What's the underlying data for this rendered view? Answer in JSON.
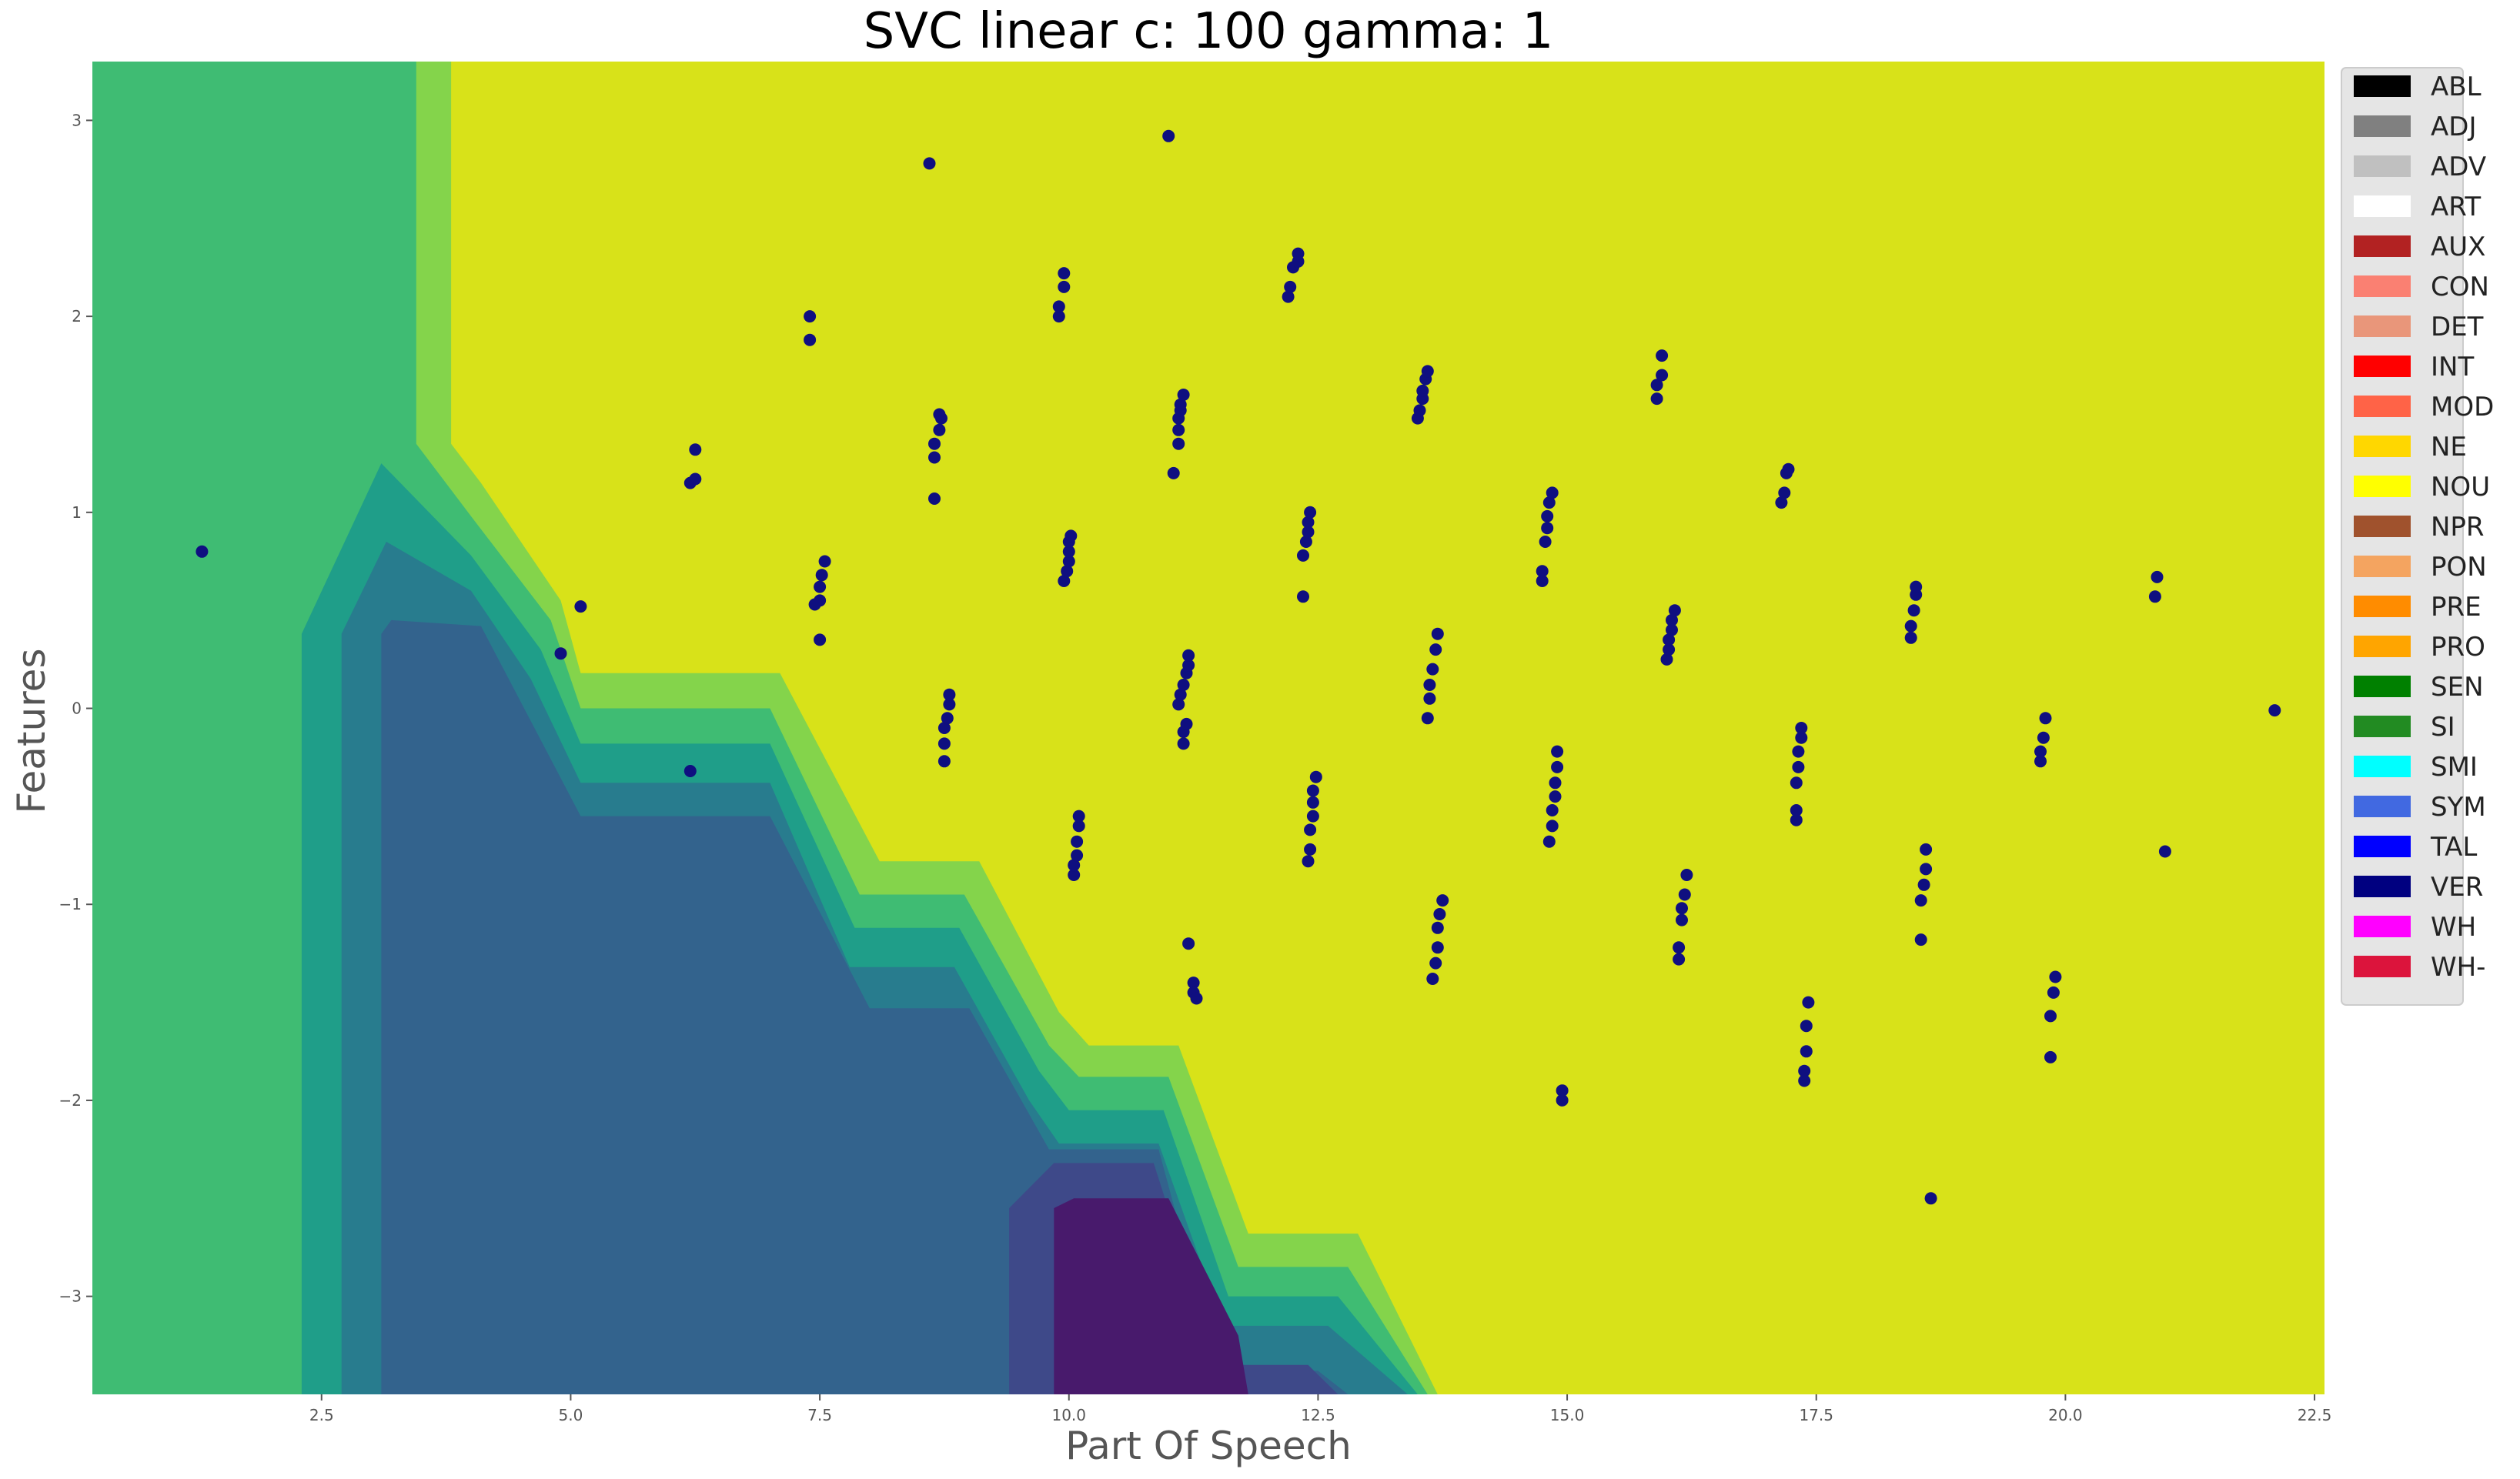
{
  "chart_data": {
    "type": "scatter",
    "title": "SVC linear c: 100 gamma: 1",
    "xlabel": "Part Of Speech",
    "ylabel": "Features",
    "xlim": [
      0.2,
      22.6
    ],
    "ylim": [
      -3.5,
      3.3
    ],
    "xticks": [
      2.5,
      5.0,
      7.5,
      10.0,
      12.5,
      15.0,
      17.5,
      20.0,
      22.5
    ],
    "xtick_labels": [
      "2.5",
      "5.0",
      "7.5",
      "10.0",
      "12.5",
      "15.0",
      "17.5",
      "20.0",
      "22.5"
    ],
    "yticks": [
      -3,
      -2,
      -1,
      0,
      1,
      2,
      3
    ],
    "ytick_labels": [
      "−3",
      "−2",
      "−1",
      "0",
      "1",
      "2",
      "3"
    ],
    "grid": false,
    "legend_position": "top-right outside",
    "point_color": "#0f0f80",
    "decision_regions": [
      {
        "color": "#d8e219",
        "polygon": [
          [
            0.2,
            3.3
          ],
          [
            22.6,
            3.3
          ],
          [
            22.6,
            -3.5
          ],
          [
            0.2,
            -3.5
          ]
        ]
      },
      {
        "color": "#84d44b",
        "polygon": [
          [
            0.2,
            3.3
          ],
          [
            3.8,
            3.3
          ],
          [
            3.8,
            1.35
          ],
          [
            4.1,
            1.15
          ],
          [
            4.9,
            0.55
          ],
          [
            5.1,
            0.18
          ],
          [
            7.1,
            0.18
          ],
          [
            8.1,
            -0.78
          ],
          [
            9.1,
            -0.78
          ],
          [
            9.9,
            -1.55
          ],
          [
            10.2,
            -1.72
          ],
          [
            11.1,
            -1.72
          ],
          [
            11.8,
            -2.68
          ],
          [
            12.9,
            -2.68
          ],
          [
            13.7,
            -3.5
          ],
          [
            0.2,
            -3.5
          ]
        ]
      },
      {
        "color": "#3fbc73",
        "polygon": [
          [
            0.2,
            3.3
          ],
          [
            3.45,
            3.3
          ],
          [
            3.45,
            1.35
          ],
          [
            4.0,
            0.98
          ],
          [
            4.8,
            0.45
          ],
          [
            5.1,
            0.0
          ],
          [
            7.0,
            0.0
          ],
          [
            7.9,
            -0.95
          ],
          [
            8.95,
            -0.95
          ],
          [
            9.8,
            -1.72
          ],
          [
            10.1,
            -1.88
          ],
          [
            11.0,
            -1.88
          ],
          [
            11.7,
            -2.85
          ],
          [
            12.8,
            -2.85
          ],
          [
            13.6,
            -3.5
          ],
          [
            0.2,
            -3.5
          ]
        ]
      },
      {
        "color": "#1f9e89",
        "polygon": [
          [
            2.3,
            -3.5
          ],
          [
            2.3,
            0.38
          ],
          [
            3.1,
            1.25
          ],
          [
            4.0,
            0.78
          ],
          [
            4.7,
            0.3
          ],
          [
            5.1,
            -0.18
          ],
          [
            7.0,
            -0.18
          ],
          [
            7.85,
            -1.12
          ],
          [
            8.9,
            -1.12
          ],
          [
            9.7,
            -1.85
          ],
          [
            10.0,
            -2.05
          ],
          [
            10.95,
            -2.05
          ],
          [
            11.6,
            -3.0
          ],
          [
            12.7,
            -3.0
          ],
          [
            13.5,
            -3.5
          ]
        ]
      },
      {
        "color": "#287c8e",
        "polygon": [
          [
            2.7,
            -3.5
          ],
          [
            2.7,
            0.38
          ],
          [
            3.15,
            0.85
          ],
          [
            4.0,
            0.6
          ],
          [
            4.6,
            0.15
          ],
          [
            5.1,
            -0.38
          ],
          [
            7.0,
            -0.38
          ],
          [
            7.8,
            -1.32
          ],
          [
            8.85,
            -1.32
          ],
          [
            9.6,
            -2.0
          ],
          [
            9.9,
            -2.22
          ],
          [
            10.9,
            -2.22
          ],
          [
            11.55,
            -3.15
          ],
          [
            12.6,
            -3.15
          ],
          [
            13.4,
            -3.5
          ]
        ]
      },
      {
        "color": "#33638d",
        "polygon": [
          [
            3.1,
            -3.5
          ],
          [
            3.1,
            0.38
          ],
          [
            3.2,
            0.45
          ],
          [
            4.1,
            0.42
          ],
          [
            5.1,
            -0.55
          ],
          [
            7.0,
            -0.55
          ],
          [
            8.0,
            -1.53
          ],
          [
            9.0,
            -1.53
          ],
          [
            9.8,
            -2.25
          ],
          [
            10.9,
            -2.25
          ],
          [
            11.5,
            -3.38
          ],
          [
            12.5,
            -3.38
          ],
          [
            12.8,
            -3.5
          ]
        ]
      },
      {
        "color": "#3e4989",
        "polygon": [
          [
            9.4,
            -3.5
          ],
          [
            9.4,
            -2.55
          ],
          [
            9.85,
            -2.32
          ],
          [
            10.85,
            -2.32
          ],
          [
            11.5,
            -3.35
          ],
          [
            12.4,
            -3.35
          ],
          [
            12.7,
            -3.5
          ]
        ]
      },
      {
        "color": "#481a6c",
        "polygon": [
          [
            9.85,
            -3.5
          ],
          [
            9.85,
            -2.55
          ],
          [
            10.05,
            -2.5
          ],
          [
            11.0,
            -2.5
          ],
          [
            11.7,
            -3.2
          ],
          [
            11.8,
            -3.5
          ]
        ]
      }
    ],
    "points": [
      [
        1.3,
        0.8
      ],
      [
        4.9,
        0.28
      ],
      [
        5.1,
        0.52
      ],
      [
        6.2,
        -0.32
      ],
      [
        6.2,
        1.15
      ],
      [
        6.25,
        1.17
      ],
      [
        6.25,
        1.32
      ],
      [
        7.4,
        1.88
      ],
      [
        7.4,
        2.0
      ],
      [
        7.5,
        0.35
      ],
      [
        7.5,
        0.55
      ],
      [
        7.5,
        0.62
      ],
      [
        7.52,
        0.68
      ],
      [
        7.55,
        0.75
      ],
      [
        7.45,
        0.53
      ],
      [
        8.6,
        2.78
      ],
      [
        8.65,
        1.07
      ],
      [
        8.65,
        1.28
      ],
      [
        8.65,
        1.35
      ],
      [
        8.7,
        1.42
      ],
      [
        8.72,
        1.48
      ],
      [
        8.7,
        1.5
      ],
      [
        8.75,
        -0.27
      ],
      [
        8.75,
        -0.18
      ],
      [
        8.75,
        -0.1
      ],
      [
        8.78,
        -0.05
      ],
      [
        8.8,
        0.02
      ],
      [
        8.8,
        0.07
      ],
      [
        9.9,
        2.0
      ],
      [
        9.9,
        2.05
      ],
      [
        9.95,
        2.15
      ],
      [
        9.95,
        2.22
      ],
      [
        9.95,
        0.65
      ],
      [
        9.98,
        0.7
      ],
      [
        10.0,
        0.75
      ],
      [
        10.0,
        0.8
      ],
      [
        10.0,
        0.85
      ],
      [
        10.02,
        0.88
      ],
      [
        10.05,
        -0.85
      ],
      [
        10.05,
        -0.8
      ],
      [
        10.08,
        -0.75
      ],
      [
        10.08,
        -0.68
      ],
      [
        10.1,
        -0.6
      ],
      [
        10.1,
        -0.55
      ],
      [
        11.0,
        2.92
      ],
      [
        11.05,
        1.2
      ],
      [
        11.1,
        1.35
      ],
      [
        11.1,
        1.42
      ],
      [
        11.1,
        1.48
      ],
      [
        11.12,
        1.52
      ],
      [
        11.12,
        1.55
      ],
      [
        11.15,
        1.6
      ],
      [
        11.1,
        0.02
      ],
      [
        11.12,
        0.07
      ],
      [
        11.15,
        0.12
      ],
      [
        11.18,
        0.18
      ],
      [
        11.2,
        0.22
      ],
      [
        11.2,
        0.27
      ],
      [
        11.15,
        -0.18
      ],
      [
        11.15,
        -0.12
      ],
      [
        11.18,
        -0.08
      ],
      [
        11.2,
        -1.2
      ],
      [
        11.25,
        -1.4
      ],
      [
        11.25,
        -1.45
      ],
      [
        11.28,
        -1.48
      ],
      [
        12.2,
        2.1
      ],
      [
        12.22,
        2.15
      ],
      [
        12.25,
        2.25
      ],
      [
        12.3,
        2.28
      ],
      [
        12.3,
        2.32
      ],
      [
        12.35,
        0.57
      ],
      [
        12.35,
        0.78
      ],
      [
        12.38,
        0.85
      ],
      [
        12.4,
        0.9
      ],
      [
        12.4,
        0.95
      ],
      [
        12.42,
        1.0
      ],
      [
        12.4,
        -0.78
      ],
      [
        12.42,
        -0.72
      ],
      [
        12.42,
        -0.62
      ],
      [
        12.45,
        -0.55
      ],
      [
        12.45,
        -0.48
      ],
      [
        12.45,
        -0.42
      ],
      [
        12.48,
        -0.35
      ],
      [
        13.5,
        1.48
      ],
      [
        13.52,
        1.52
      ],
      [
        13.55,
        1.58
      ],
      [
        13.55,
        1.62
      ],
      [
        13.58,
        1.68
      ],
      [
        13.6,
        1.72
      ],
      [
        13.6,
        -0.05
      ],
      [
        13.62,
        0.05
      ],
      [
        13.62,
        0.12
      ],
      [
        13.65,
        0.2
      ],
      [
        13.68,
        0.3
      ],
      [
        13.7,
        0.38
      ],
      [
        13.65,
        -1.38
      ],
      [
        13.68,
        -1.3
      ],
      [
        13.7,
        -1.22
      ],
      [
        13.7,
        -1.12
      ],
      [
        13.72,
        -1.05
      ],
      [
        13.75,
        -0.98
      ],
      [
        14.75,
        0.65
      ],
      [
        14.75,
        0.7
      ],
      [
        14.78,
        0.85
      ],
      [
        14.8,
        0.92
      ],
      [
        14.8,
        0.98
      ],
      [
        14.82,
        1.05
      ],
      [
        14.85,
        1.1
      ],
      [
        14.82,
        -0.68
      ],
      [
        14.85,
        -0.6
      ],
      [
        14.85,
        -0.52
      ],
      [
        14.88,
        -0.45
      ],
      [
        14.88,
        -0.38
      ],
      [
        14.9,
        -0.3
      ],
      [
        14.9,
        -0.22
      ],
      [
        14.95,
        -2.0
      ],
      [
        14.95,
        -1.95
      ],
      [
        15.9,
        1.58
      ],
      [
        15.9,
        1.65
      ],
      [
        15.95,
        1.7
      ],
      [
        15.95,
        1.8
      ],
      [
        16.0,
        0.25
      ],
      [
        16.02,
        0.3
      ],
      [
        16.02,
        0.35
      ],
      [
        16.05,
        0.4
      ],
      [
        16.05,
        0.45
      ],
      [
        16.08,
        0.5
      ],
      [
        16.12,
        -1.28
      ],
      [
        16.12,
        -1.22
      ],
      [
        16.15,
        -1.08
      ],
      [
        16.15,
        -1.02
      ],
      [
        16.18,
        -0.95
      ],
      [
        16.2,
        -0.85
      ],
      [
        17.15,
        1.05
      ],
      [
        17.18,
        1.1
      ],
      [
        17.2,
        1.2
      ],
      [
        17.22,
        1.22
      ],
      [
        17.3,
        -0.57
      ],
      [
        17.3,
        -0.52
      ],
      [
        17.3,
        -0.38
      ],
      [
        17.32,
        -0.3
      ],
      [
        17.32,
        -0.22
      ],
      [
        17.35,
        -0.15
      ],
      [
        17.35,
        -0.1
      ],
      [
        17.38,
        -1.9
      ],
      [
        17.38,
        -1.85
      ],
      [
        17.4,
        -1.75
      ],
      [
        17.4,
        -1.62
      ],
      [
        17.42,
        -1.5
      ],
      [
        18.45,
        0.36
      ],
      [
        18.45,
        0.42
      ],
      [
        18.48,
        0.5
      ],
      [
        18.5,
        0.58
      ],
      [
        18.5,
        0.62
      ],
      [
        18.55,
        -1.18
      ],
      [
        18.55,
        -0.98
      ],
      [
        18.58,
        -0.9
      ],
      [
        18.6,
        -0.82
      ],
      [
        18.6,
        -0.72
      ],
      [
        18.65,
        -2.5
      ],
      [
        19.75,
        -0.27
      ],
      [
        19.75,
        -0.22
      ],
      [
        19.78,
        -0.15
      ],
      [
        19.8,
        -0.05
      ],
      [
        19.85,
        -1.78
      ],
      [
        19.85,
        -1.57
      ],
      [
        19.88,
        -1.45
      ],
      [
        19.9,
        -1.37
      ],
      [
        20.9,
        0.57
      ],
      [
        20.92,
        0.67
      ],
      [
        21.0,
        -0.73
      ],
      [
        22.1,
        -0.01
      ]
    ]
  },
  "legend": {
    "items": [
      {
        "label": "ABL",
        "color": "#000000"
      },
      {
        "label": "ADJ",
        "color": "#808080"
      },
      {
        "label": "ADV",
        "color": "#c0c0c0"
      },
      {
        "label": "ART",
        "color": "#ffffff"
      },
      {
        "label": "AUX",
        "color": "#b22222"
      },
      {
        "label": "CON",
        "color": "#fa8072"
      },
      {
        "label": "DET",
        "color": "#e9967a"
      },
      {
        "label": "INT",
        "color": "#ff0000"
      },
      {
        "label": "MOD",
        "color": "#ff6347"
      },
      {
        "label": "NE",
        "color": "#ffd700"
      },
      {
        "label": "NOU",
        "color": "#ffff00"
      },
      {
        "label": "NPR",
        "color": "#a0522d"
      },
      {
        "label": "PON",
        "color": "#f4a460"
      },
      {
        "label": "PRE",
        "color": "#ff8c00"
      },
      {
        "label": "PRO",
        "color": "#ffa500"
      },
      {
        "label": "SEN",
        "color": "#008000"
      },
      {
        "label": "SI",
        "color": "#228b22"
      },
      {
        "label": "SMI",
        "color": "#00ffff"
      },
      {
        "label": "SYM",
        "color": "#4169e1"
      },
      {
        "label": "TAL",
        "color": "#0000ff"
      },
      {
        "label": "VER",
        "color": "#000080"
      },
      {
        "label": "WH",
        "color": "#ff00ff"
      },
      {
        "label": "WH-",
        "color": "#dc143c"
      }
    ]
  }
}
